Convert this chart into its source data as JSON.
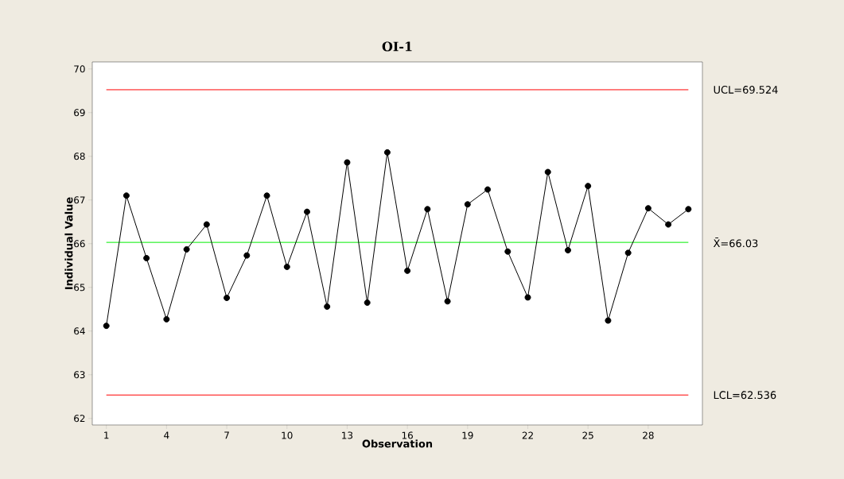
{
  "chart_data": {
    "type": "line",
    "title": "OI-1",
    "xlabel": "Observation",
    "ylabel": "Individual Value",
    "x": [
      1,
      2,
      3,
      4,
      5,
      6,
      7,
      8,
      9,
      10,
      11,
      12,
      13,
      14,
      15,
      16,
      17,
      18,
      19,
      20,
      21,
      22,
      23,
      24,
      25,
      26,
      27,
      28,
      29,
      30
    ],
    "series": [
      {
        "color": "#000000",
        "values": [
          64.12,
          67.1,
          65.67,
          64.27,
          65.87,
          66.44,
          64.76,
          65.73,
          67.1,
          65.47,
          66.73,
          64.56,
          67.86,
          64.65,
          68.09,
          65.38,
          66.79,
          64.68,
          66.9,
          67.24,
          65.82,
          64.77,
          67.64,
          65.85,
          67.32,
          64.24,
          65.79,
          66.81,
          66.44,
          66.79
        ]
      }
    ],
    "marker": "circle",
    "line_style": "solid",
    "xlim": [
      0.3,
      30.7
    ],
    "xticks": [
      1,
      4,
      7,
      10,
      13,
      16,
      19,
      22,
      25,
      28
    ],
    "ylim": [
      61.85,
      70.16
    ],
    "yticks": [
      62,
      63,
      64,
      65,
      66,
      67,
      68,
      69,
      70
    ],
    "ref_lines": [
      {
        "axis": "y",
        "value": 69.524,
        "label": "UCL=69.524",
        "color": "#ff0000"
      },
      {
        "axis": "y",
        "value": 66.03,
        "label": "X̄=66.03",
        "color": "#00ee00"
      },
      {
        "axis": "y",
        "value": 62.536,
        "label": "LCL=62.536",
        "color": "#ff0000"
      }
    ]
  }
}
